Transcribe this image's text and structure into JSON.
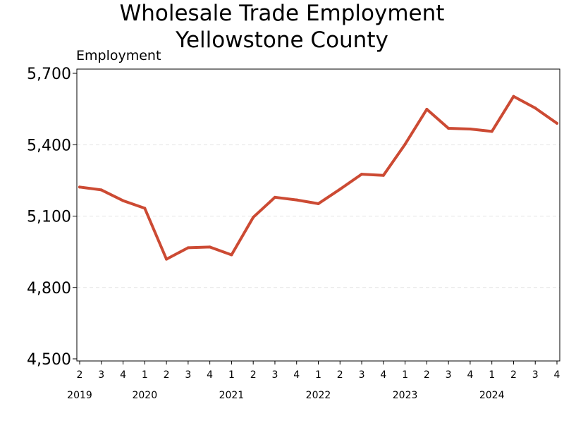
{
  "chart_data": {
    "type": "line",
    "title": "Wholesale Trade Employment",
    "subtitle": "Yellowstone County",
    "xlabel": "",
    "ylabel": "Employment",
    "ylim": [
      4500,
      5700
    ],
    "yticks": [
      "4,500",
      "4,800",
      "5,100",
      "5,400",
      "5,700"
    ],
    "ytick_values": [
      4500,
      4800,
      5100,
      5400,
      5700
    ],
    "grid": "horizontal-dashed",
    "legend": "none",
    "series_color": "#cc4a33",
    "grid_color": "#e3e3e3",
    "categories": [
      {
        "quarter": "2",
        "year": "2019"
      },
      {
        "quarter": "3",
        "year": ""
      },
      {
        "quarter": "4",
        "year": ""
      },
      {
        "quarter": "1",
        "year": "2020"
      },
      {
        "quarter": "2",
        "year": ""
      },
      {
        "quarter": "3",
        "year": ""
      },
      {
        "quarter": "4",
        "year": ""
      },
      {
        "quarter": "1",
        "year": "2021"
      },
      {
        "quarter": "2",
        "year": ""
      },
      {
        "quarter": "3",
        "year": ""
      },
      {
        "quarter": "4",
        "year": ""
      },
      {
        "quarter": "1",
        "year": "2022"
      },
      {
        "quarter": "2",
        "year": ""
      },
      {
        "quarter": "3",
        "year": ""
      },
      {
        "quarter": "4",
        "year": ""
      },
      {
        "quarter": "1",
        "year": "2023"
      },
      {
        "quarter": "2",
        "year": ""
      },
      {
        "quarter": "3",
        "year": ""
      },
      {
        "quarter": "4",
        "year": ""
      },
      {
        "quarter": "1",
        "year": "2024"
      },
      {
        "quarter": "2",
        "year": ""
      },
      {
        "quarter": "3",
        "year": ""
      },
      {
        "quarter": "4",
        "year": ""
      }
    ],
    "series": [
      {
        "values": [
          5222,
          5210,
          5165,
          5133,
          4919,
          4967,
          4970,
          4937,
          5095,
          5179,
          5168,
          5152,
          5213,
          5276,
          5271,
          5402,
          5549,
          5469,
          5466,
          5456,
          5603,
          5554,
          5490
        ]
      }
    ]
  }
}
